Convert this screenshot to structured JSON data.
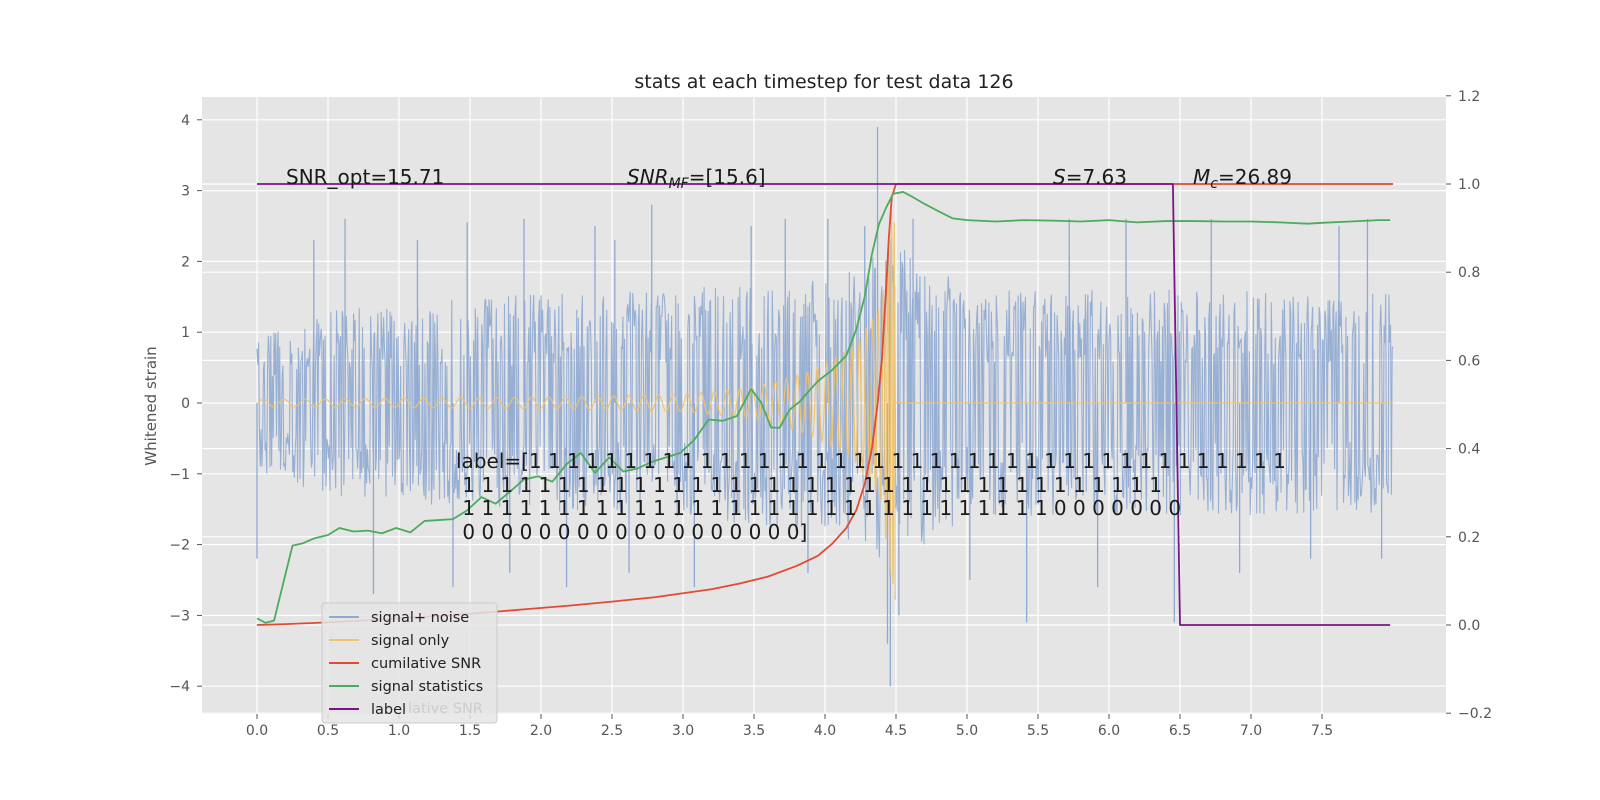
{
  "chart_data": {
    "type": "line",
    "title": "stats at each timestep for test data 126",
    "ylabel": "Whitened strain",
    "xlim": [
      -0.38,
      8.4
    ],
    "ylim": [
      -4.4,
      4.3
    ],
    "y2lim": [
      -0.2,
      1.2
    ],
    "grid": true,
    "x_ticks": [
      "0.0",
      "0.5",
      "1.0",
      "1.5",
      "2.0",
      "2.5",
      "3.0",
      "3.5",
      "4.0",
      "4.5",
      "5.0",
      "5.5",
      "6.0",
      "6.5",
      "7.0",
      "7.5"
    ],
    "y_ticks": [
      "4",
      "3",
      "2",
      "1",
      "0",
      "−1",
      "−2",
      "−3",
      "−4"
    ],
    "y2_ticks": [
      "1.2",
      "1.0",
      "0.8",
      "0.6",
      "0.4",
      "0.2",
      "0.0",
      "−0.2"
    ],
    "annotations": {
      "snr_opt": "SNR_opt=15.71",
      "snr_mf_sym": "SNR",
      "snr_mf_sub": "MF",
      "snr_mf_val": "=[15.6]",
      "s_sym": "S",
      "s_val": "=7.63",
      "mc_sym": "M",
      "mc_sub": "c",
      "mc_val": "=26.89",
      "label_lines": [
        "label=[1 1 1 1 1 1 1 1 1 1 1 1 1 1 1 1 1 1 1 1 1 1 1 1 1 1 1 1 1 1 1 1 1 1 1 1 1 1 1 1",
        " 1 1 1 1 1 1 1 1 1 1 1 1 1 1 1 1 1 1 1 1 1 1 1 1 1 1 1 1 1 1 1 1 1 1 1 1 1",
        " 1 1 1 1 1 1 1 1 1 1 1 1 1 1 1 1 1 1 1 1 1 1 1 1 1 1 1 1 1 1 1 0 0 0 0 0 0 0",
        " 0 0 0 0 0 0 0 0 0 0 0 0 0 0 0 0 0 0]"
      ]
    },
    "legend": {
      "position": "lower-left",
      "faded_text": "lative SNR",
      "entries": [
        {
          "name": "signal+ noise",
          "color": "#8fa8d1"
        },
        {
          "name": "signal only",
          "color": "#f0c36a"
        },
        {
          "name": "cumilative SNR",
          "color": "#e24a33"
        },
        {
          "name": "signal statistics",
          "color": "#4cab5d"
        },
        {
          "name": "label",
          "color": "#7b1585"
        }
      ]
    },
    "series": [
      {
        "name": "signal+ noise",
        "axis": "left",
        "color": "#8fa8d1",
        "t_range": [
          0,
          8
        ],
        "noise_band_top": [
          [
            0.0,
            0.95
          ],
          [
            0.5,
            1.3
          ],
          [
            1.5,
            1.5
          ],
          [
            3.0,
            1.6
          ],
          [
            4.3,
            2.0
          ],
          [
            4.45,
            2.4
          ],
          [
            5.0,
            1.6
          ],
          [
            6.5,
            1.6
          ],
          [
            8.0,
            1.55
          ]
        ],
        "noise_band_bottom": [
          [
            0.0,
            -1.0
          ],
          [
            0.5,
            -1.3
          ],
          [
            1.5,
            -1.5
          ],
          [
            3.0,
            -1.6
          ],
          [
            4.3,
            -2.0
          ],
          [
            4.45,
            -2.4
          ],
          [
            5.0,
            -1.6
          ],
          [
            6.5,
            -1.6
          ],
          [
            8.0,
            -1.55
          ]
        ],
        "spikes": [
          [
            0.0,
            -2.2
          ],
          [
            0.4,
            2.3
          ],
          [
            0.62,
            2.6
          ],
          [
            0.82,
            -2.7
          ],
          [
            1.13,
            2.3
          ],
          [
            1.38,
            -2.6
          ],
          [
            1.48,
            2.55
          ],
          [
            1.78,
            -2.4
          ],
          [
            1.88,
            2.6
          ],
          [
            2.18,
            -2.6
          ],
          [
            2.38,
            2.5
          ],
          [
            2.52,
            2.3
          ],
          [
            2.62,
            -2.4
          ],
          [
            2.78,
            2.8
          ],
          [
            3.08,
            -2.6
          ],
          [
            3.48,
            2.5
          ],
          [
            3.72,
            2.6
          ],
          [
            3.88,
            -2.4
          ],
          [
            4.02,
            2.6
          ],
          [
            4.28,
            2.5
          ],
          [
            4.37,
            3.9
          ],
          [
            4.44,
            -3.4
          ],
          [
            4.46,
            -4.0
          ],
          [
            4.52,
            -3.0
          ],
          [
            4.62,
            2.6
          ],
          [
            5.02,
            -2.5
          ],
          [
            5.42,
            -3.1
          ],
          [
            5.72,
            2.6
          ],
          [
            5.92,
            -2.6
          ],
          [
            6.12,
            2.6
          ],
          [
            6.46,
            -3.1
          ],
          [
            6.72,
            2.6
          ],
          [
            6.92,
            -2.4
          ],
          [
            7.42,
            -2.2
          ],
          [
            7.62,
            2.5
          ],
          [
            7.82,
            2.6
          ],
          [
            7.92,
            -2.2
          ]
        ]
      },
      {
        "name": "signal only",
        "axis": "left",
        "color": "#f0c36a",
        "t_range": [
          0,
          4.5
        ],
        "amplitude": [
          [
            0.0,
            0.05
          ],
          [
            2.0,
            0.08
          ],
          [
            3.0,
            0.12
          ],
          [
            3.5,
            0.22
          ],
          [
            3.9,
            0.45
          ],
          [
            4.2,
            0.8
          ],
          [
            4.4,
            1.4
          ],
          [
            4.47,
            2.8
          ]
        ],
        "post_merger_value": 0.0,
        "post_merger_range": [
          4.5,
          8.0
        ]
      },
      {
        "name": "cumilative SNR",
        "axis": "right",
        "color": "#e24a33",
        "x": [
          0.0,
          0.2,
          0.5,
          0.8,
          1.0,
          1.3,
          1.6,
          1.9,
          2.2,
          2.5,
          2.8,
          3.0,
          3.2,
          3.4,
          3.6,
          3.8,
          3.95,
          4.05,
          4.15,
          4.22,
          4.28,
          4.33,
          4.37,
          4.4,
          4.43,
          4.45,
          4.47,
          4.5,
          5.0,
          5.5,
          6.0,
          6.5,
          7.0,
          7.5,
          8.0
        ],
        "y": [
          0.0,
          0.002,
          0.006,
          0.011,
          0.015,
          0.021,
          0.028,
          0.036,
          0.044,
          0.053,
          0.063,
          0.072,
          0.081,
          0.094,
          0.11,
          0.134,
          0.157,
          0.184,
          0.22,
          0.26,
          0.32,
          0.4,
          0.5,
          0.6,
          0.76,
          0.88,
          0.97,
          1.0,
          1.0,
          1.0,
          1.0,
          1.0,
          1.0,
          1.0,
          1.0
        ]
      },
      {
        "name": "signal statistics",
        "axis": "right",
        "color": "#4cab5d",
        "x": [
          0.0,
          0.06,
          0.12,
          0.25,
          0.32,
          0.4,
          0.5,
          0.58,
          0.68,
          0.78,
          0.88,
          0.98,
          1.08,
          1.18,
          1.28,
          1.38,
          1.48,
          1.58,
          1.68,
          1.78,
          1.88,
          1.98,
          2.08,
          2.18,
          2.28,
          2.38,
          2.48,
          2.58,
          2.68,
          2.78,
          2.88,
          2.98,
          3.08,
          3.18,
          3.28,
          3.38,
          3.48,
          3.55,
          3.62,
          3.68,
          3.75,
          3.82,
          3.88,
          3.95,
          4.05,
          4.15,
          4.22,
          4.28,
          4.33,
          4.38,
          4.43,
          4.48,
          4.55,
          4.62,
          4.7,
          4.8,
          4.9,
          5.0,
          5.2,
          5.4,
          5.6,
          5.8,
          6.0,
          6.2,
          6.4,
          6.6,
          6.8,
          7.0,
          7.2,
          7.4,
          7.5,
          7.7,
          7.9,
          7.98
        ],
        "y": [
          0.015,
          0.005,
          0.01,
          0.18,
          0.185,
          0.196,
          0.204,
          0.22,
          0.212,
          0.214,
          0.208,
          0.22,
          0.21,
          0.236,
          0.238,
          0.24,
          0.26,
          0.29,
          0.275,
          0.302,
          0.33,
          0.337,
          0.325,
          0.365,
          0.39,
          0.345,
          0.38,
          0.348,
          0.355,
          0.37,
          0.38,
          0.39,
          0.42,
          0.466,
          0.463,
          0.474,
          0.535,
          0.505,
          0.448,
          0.447,
          0.488,
          0.506,
          0.528,
          0.553,
          0.578,
          0.611,
          0.67,
          0.745,
          0.84,
          0.909,
          0.946,
          0.978,
          0.982,
          0.97,
          0.955,
          0.938,
          0.922,
          0.918,
          0.915,
          0.918,
          0.917,
          0.915,
          0.918,
          0.913,
          0.916,
          0.916,
          0.915,
          0.915,
          0.913,
          0.91,
          0.912,
          0.915,
          0.918,
          0.918
        ]
      },
      {
        "name": "label",
        "axis": "right",
        "color": "#7b1585",
        "x": [
          0.0,
          6.45,
          6.5,
          7.98
        ],
        "y": [
          1.0,
          1.0,
          0.0,
          0.0
        ]
      }
    ]
  }
}
